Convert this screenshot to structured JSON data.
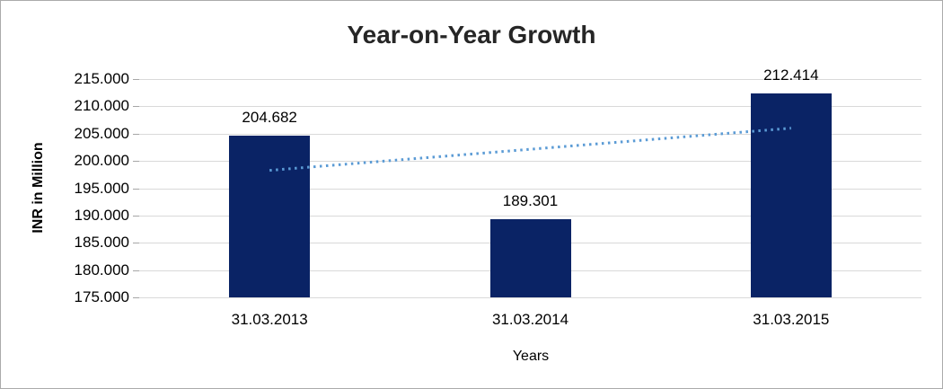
{
  "window": {
    "background_color": "#FFFFFF",
    "border_color": "#ABABAB"
  },
  "chart_data": {
    "type": "bar",
    "title": "Year-on-Year Growth",
    "xlabel": "Years",
    "ylabel": "INR in Million",
    "categories": [
      "31.03.2013",
      "31.03.2014",
      "31.03.2015"
    ],
    "values": [
      204.682,
      189.301,
      212.414
    ],
    "value_labels": [
      "204.682",
      "189.301",
      "212.414"
    ],
    "ylim": [
      175,
      215
    ],
    "ytick_values": [
      215,
      210,
      205,
      200,
      195,
      190,
      185,
      180,
      175
    ],
    "ytick_labels": [
      "215.000",
      "210.000",
      "205.000",
      "200.000",
      "195.000",
      "190.000",
      "185.000",
      "180.000",
      "175.000"
    ],
    "grid": true,
    "legend": "none",
    "bar_color": "#0A2365",
    "gridline_color": "#D9D9D9",
    "trendline": {
      "style": "dotted",
      "color": "#5B9BD5",
      "start_value": 198.27,
      "end_value": 206.0
    }
  }
}
